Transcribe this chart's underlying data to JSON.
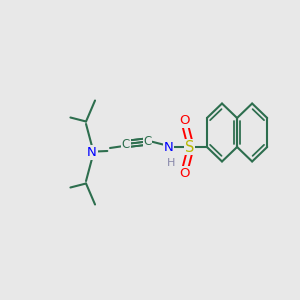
{
  "bg_color": "#e8e8e8",
  "bond_color": "#2d6e4e",
  "n_color": "#0000ff",
  "s_color": "#b8b800",
  "o_color": "#ff0000",
  "figsize": [
    3.0,
    3.0
  ],
  "dpi": 100,
  "xlim": [
    0,
    10
  ],
  "ylim": [
    2,
    8
  ]
}
